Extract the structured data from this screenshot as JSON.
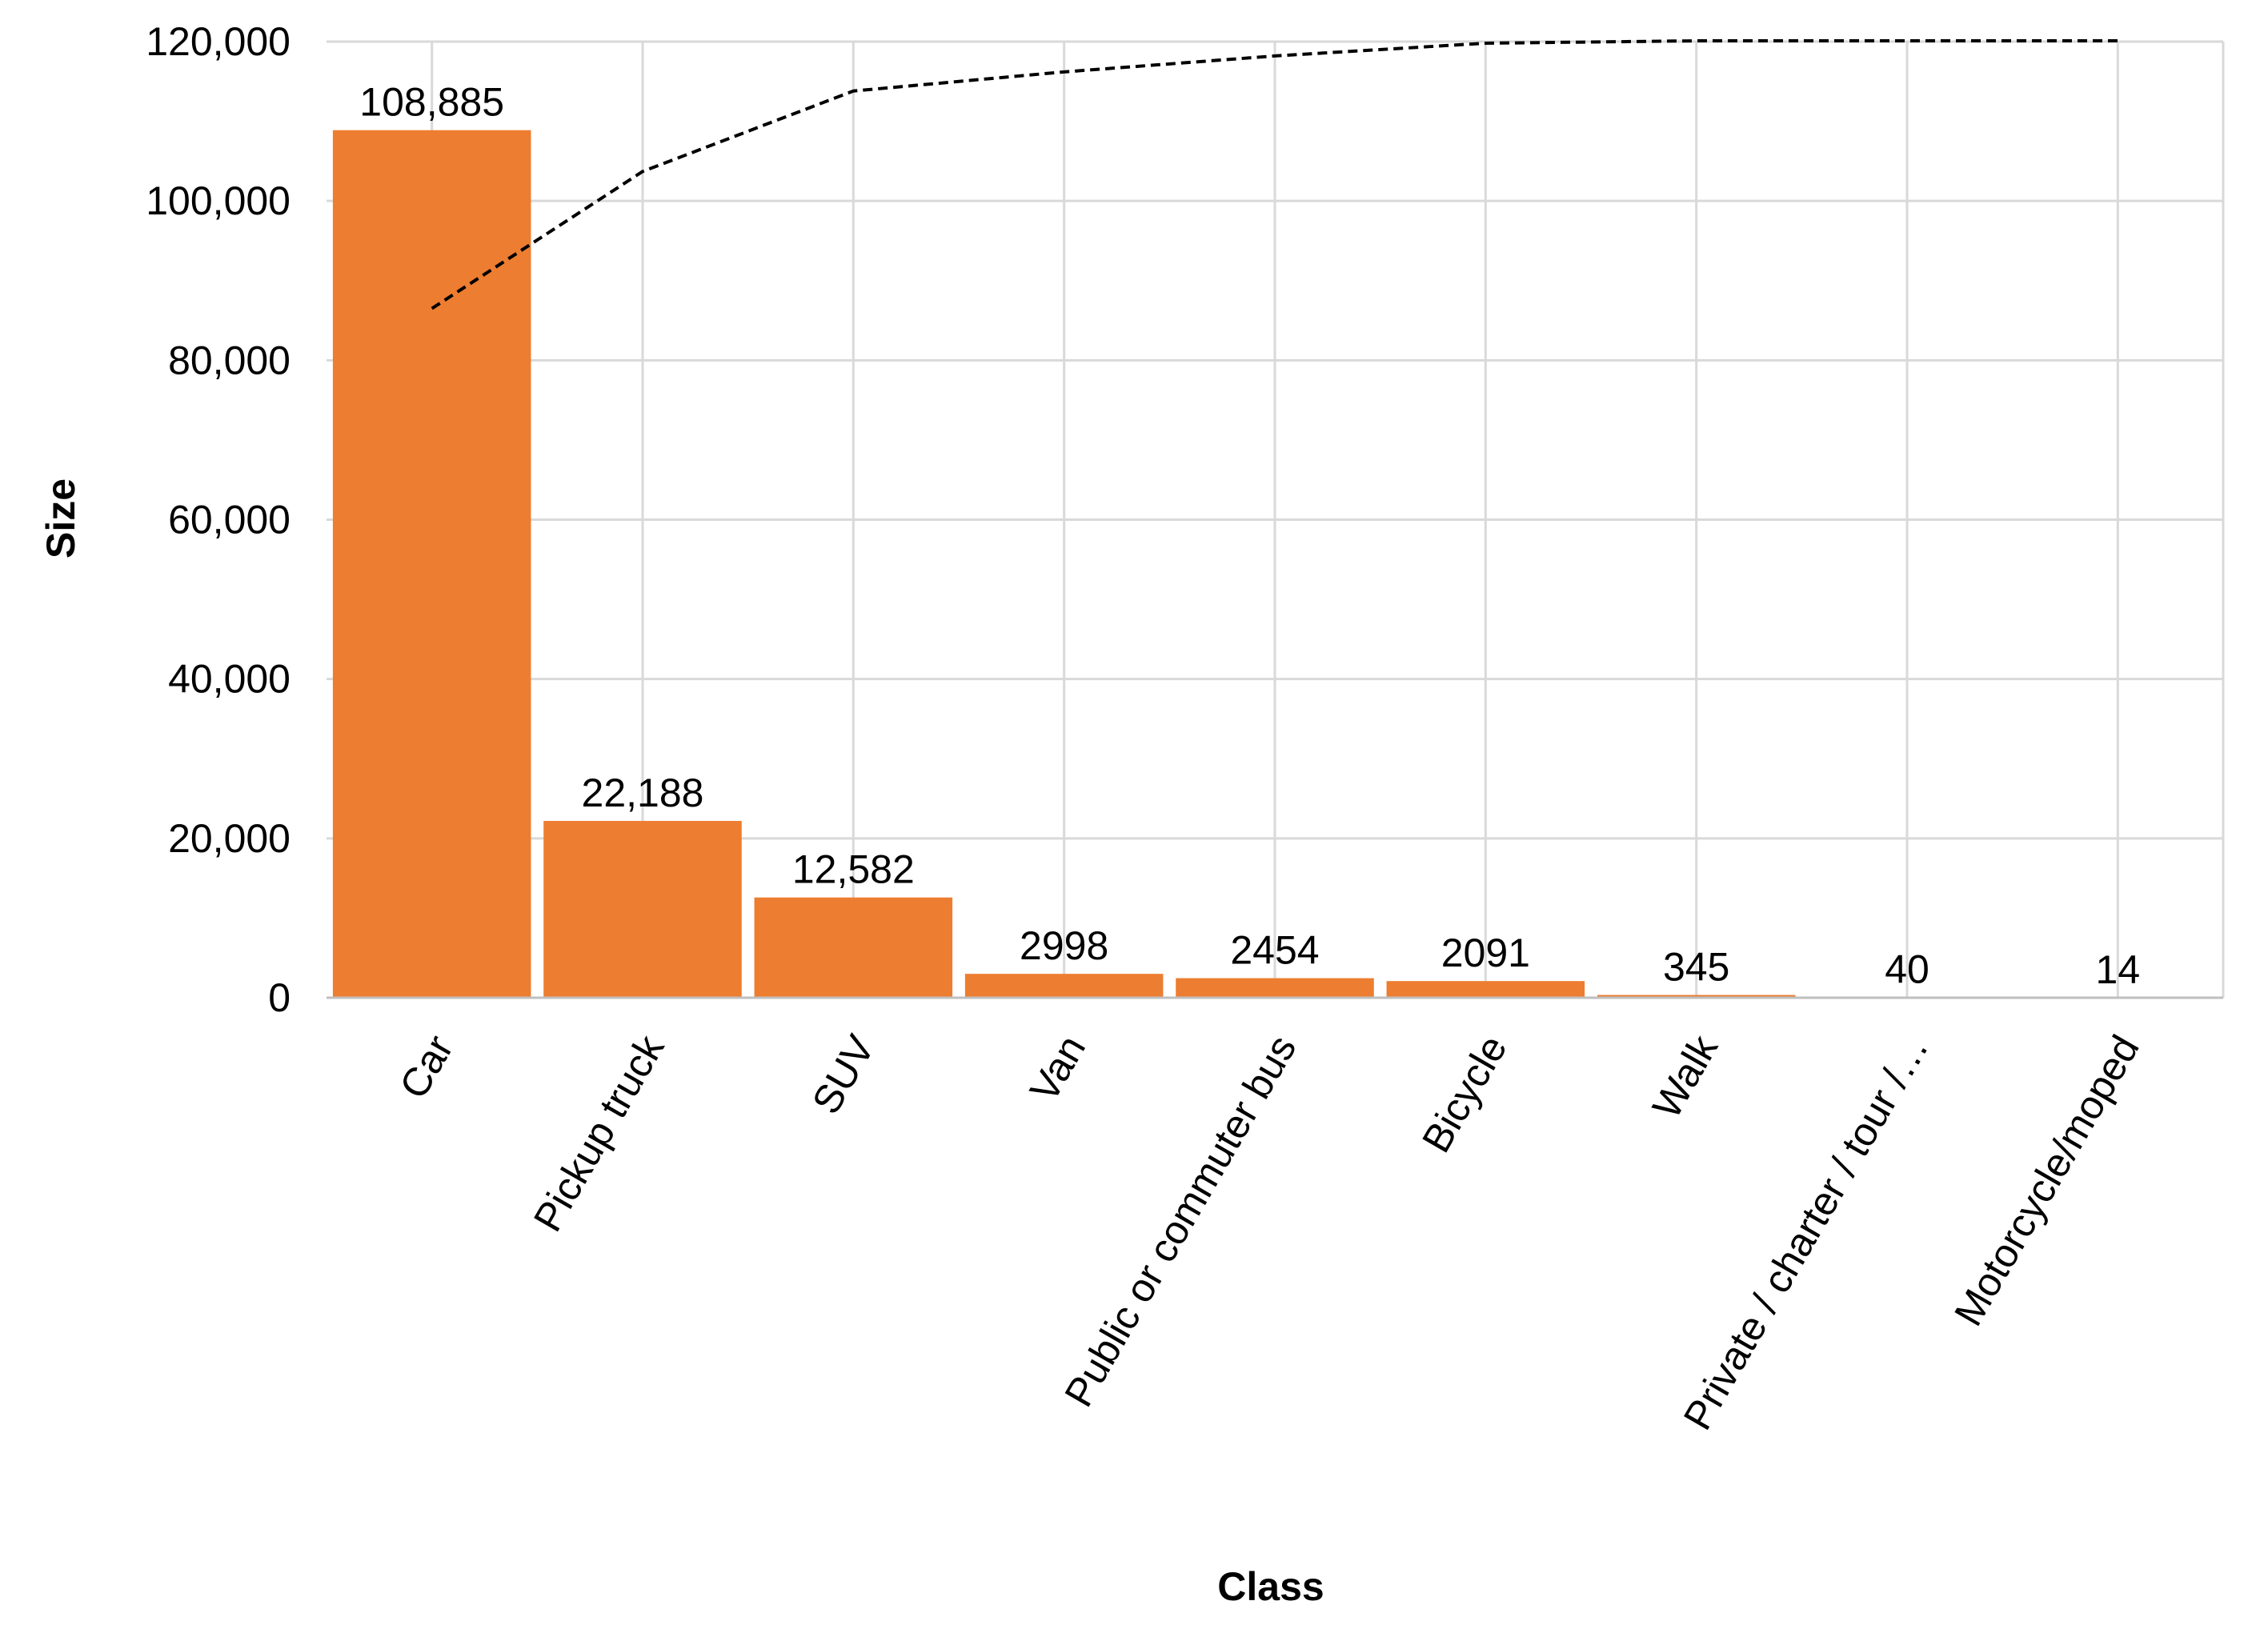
{
  "chart_data": {
    "type": "bar",
    "title": "",
    "xlabel": "Class",
    "ylabel": "Size",
    "ylim": [
      0,
      120000
    ],
    "yticks": [
      0,
      20000,
      40000,
      60000,
      80000,
      100000,
      120000
    ],
    "ytick_labels": [
      "0",
      "20,000",
      "40,000",
      "60,000",
      "80,000",
      "100,000",
      "120,000"
    ],
    "grid": true,
    "legend": "none",
    "categories": [
      "Car",
      "Pickup truck",
      "SUV",
      "Van",
      "Public or commuter bus",
      "Bicycle",
      "Walk",
      "Private / charter / tour /…",
      "Motorcycle/moped"
    ],
    "series": [
      {
        "type": "bar",
        "color": "#ed7d31",
        "values": [
          108885,
          22188,
          12582,
          2998,
          2454,
          2091,
          345,
          40,
          14
        ],
        "data_labels": [
          "108,885",
          "22,188",
          "12,582",
          "2998",
          "2454",
          "2091",
          "345",
          "40",
          "14"
        ]
      },
      {
        "type": "line",
        "style": "dashed",
        "color": "#000000",
        "values": [
          86500,
          103700,
          113800,
          116200,
          118200,
          119800,
          120100,
          120100,
          120100
        ]
      }
    ]
  }
}
